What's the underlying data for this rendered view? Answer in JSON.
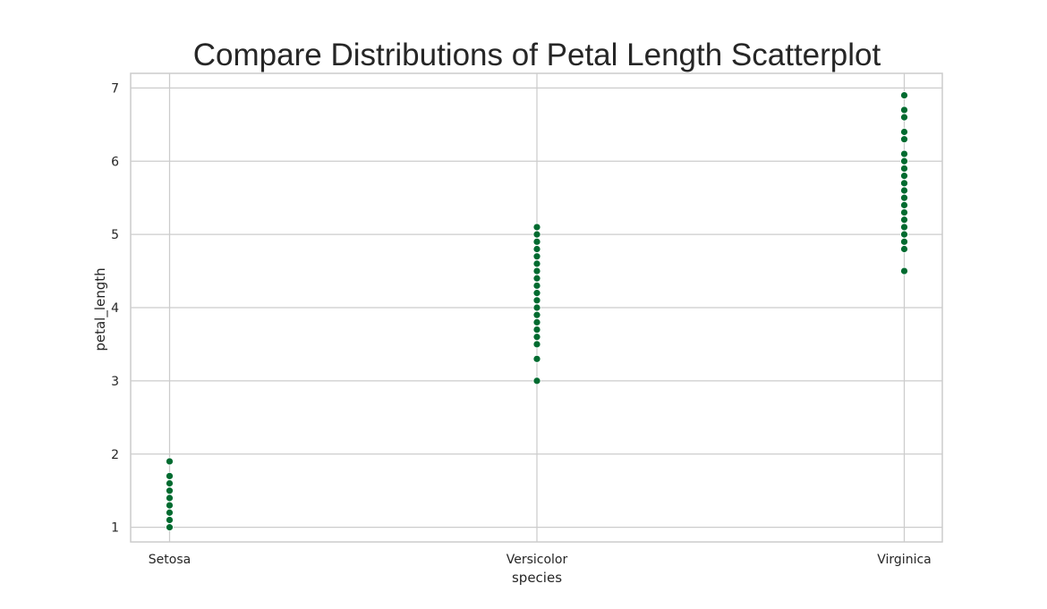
{
  "chart_data": {
    "type": "scatter",
    "title": "Compare Distributions of Petal Length Scatterplot",
    "xlabel": "species",
    "ylabel": "petal_length",
    "categories": [
      "Setosa",
      "Versicolor",
      "Virginica"
    ],
    "ylim": [
      0.8,
      7.2
    ],
    "yticks": [
      "1",
      "2",
      "3",
      "4",
      "5",
      "6",
      "7"
    ],
    "grid": true,
    "marker_color": "#006b30",
    "series": [
      {
        "values": {
          "Setosa": [
            1.0,
            1.1,
            1.2,
            1.3,
            1.4,
            1.5,
            1.6,
            1.7,
            1.9
          ],
          "Versicolor": [
            3.0,
            3.3,
            3.5,
            3.6,
            3.7,
            3.8,
            3.9,
            4.0,
            4.1,
            4.2,
            4.3,
            4.4,
            4.5,
            4.6,
            4.7,
            4.8,
            4.9,
            5.0,
            5.1
          ],
          "Virginica": [
            4.5,
            4.8,
            4.9,
            5.0,
            5.1,
            5.2,
            5.3,
            5.4,
            5.5,
            5.6,
            5.7,
            5.8,
            5.9,
            6.0,
            6.1,
            6.3,
            6.4,
            6.6,
            6.7,
            6.9
          ]
        }
      }
    ]
  }
}
